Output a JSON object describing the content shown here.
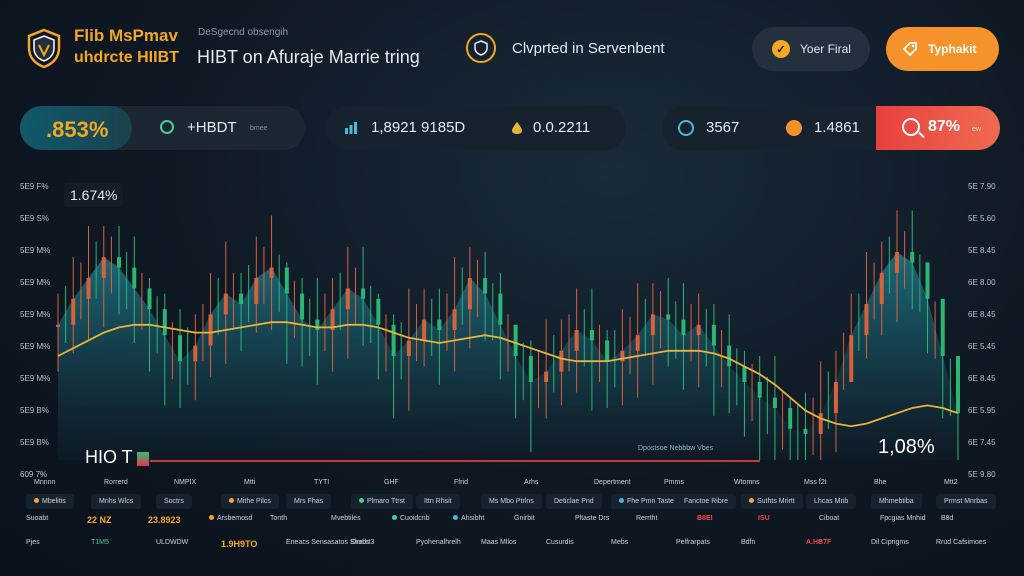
{
  "header": {
    "brand_title": "Flib MsPmav",
    "brand_subtitle": "uhdrcte HIIBT",
    "small_label": "DeSgecnd obsengih",
    "subtitle": "HIBT on Afuraje Marrie tring",
    "status_text": "Clvprted in Servenbent",
    "secondary_button": "Yoer Firal",
    "primary_button": "Typhakit"
  },
  "stats": {
    "percent": ".853%",
    "asset_label": "+HBDT",
    "asset_small": "bmee",
    "value1": "1,8921 9185D",
    "value2": "0.0.2211",
    "count": "3567",
    "amount": "1.4861",
    "red_value": "87%",
    "red_small": "ew"
  },
  "chart": {
    "badge_top": "1.674%",
    "badge_bottom": "1,08%",
    "asset_name": "HIO T",
    "caption": "Dpostsoe Nebbbw Vbes",
    "y_ticks_left": [
      "5E9 F%",
      "5E9 S%",
      "5E9 M%",
      "5E9 M%",
      "5E9 M%",
      "5E9 M%",
      "5E9 M%",
      "5E9 B%",
      "5E9 B%",
      "609 7%"
    ],
    "y_ticks_right": [
      "5E 7.90",
      "5E 5.60",
      "5E 8.45",
      "6E 8.00",
      "6E 8.45",
      "6E 5.45",
      "6E 8.45",
      "6E 5.95",
      "6E 7.45",
      "5E 9.80"
    ],
    "colors": {
      "area_top": "#1d6f7f",
      "area_bottom": "#0f1c27",
      "bull": "#d7623a",
      "bear": "#2bb673",
      "ma": "#e6b43a"
    }
  },
  "chart_data": {
    "type": "line",
    "title": "",
    "xlabel": "",
    "ylabel": "",
    "x": [
      1,
      2,
      3,
      4,
      5,
      6,
      7,
      8,
      9,
      10,
      11,
      12,
      13,
      14,
      15,
      16,
      17,
      18,
      19,
      20,
      21,
      22,
      23,
      24,
      25,
      26,
      27,
      28,
      29,
      30,
      31,
      32,
      33,
      34,
      35,
      36,
      37,
      38,
      39,
      40,
      41,
      42,
      43,
      44,
      45,
      46,
      47,
      48,
      49,
      50,
      51,
      52,
      53,
      54,
      55,
      56,
      57,
      58,
      59,
      60
    ],
    "series": [
      {
        "values": [
          0.52,
          0.62,
          0.7,
          0.78,
          0.74,
          0.66,
          0.58,
          0.48,
          0.38,
          0.44,
          0.56,
          0.64,
          0.6,
          0.7,
          0.74,
          0.64,
          0.54,
          0.5,
          0.58,
          0.66,
          0.62,
          0.52,
          0.4,
          0.46,
          0.54,
          0.5,
          0.58,
          0.7,
          0.64,
          0.52,
          0.4,
          0.3,
          0.34,
          0.42,
          0.5,
          0.46,
          0.38,
          0.42,
          0.48,
          0.56,
          0.54,
          0.48,
          0.52,
          0.44,
          0.36,
          0.3,
          0.24,
          0.2,
          0.12,
          0.1,
          0.18,
          0.3,
          0.48,
          0.6,
          0.72,
          0.8,
          0.76,
          0.62,
          0.4,
          0.18
        ]
      },
      {
        "values": [
          0.4,
          0.43,
          0.46,
          0.49,
          0.51,
          0.52,
          0.52,
          0.51,
          0.5,
          0.49,
          0.49,
          0.5,
          0.51,
          0.52,
          0.53,
          0.53,
          0.52,
          0.51,
          0.51,
          0.52,
          0.52,
          0.51,
          0.49,
          0.47,
          0.46,
          0.45,
          0.46,
          0.47,
          0.48,
          0.47,
          0.45,
          0.43,
          0.41,
          0.39,
          0.38,
          0.38,
          0.38,
          0.39,
          0.4,
          0.41,
          0.42,
          0.42,
          0.42,
          0.41,
          0.39,
          0.36,
          0.33,
          0.29,
          0.24,
          0.19,
          0.16,
          0.14,
          0.13,
          0.14,
          0.16,
          0.18,
          0.2,
          0.21,
          0.2,
          0.18
        ]
      }
    ]
  },
  "table": {
    "header": [
      "Mnnnn",
      "Rorrerd",
      "NMPIX",
      "Mtti",
      "TYTI",
      "GHF",
      "Ffrid",
      "Arhs",
      "Depertment",
      "Pmms",
      "Wtomns",
      "Mss f2t",
      "Bhe",
      "Mtt2"
    ],
    "row1": [
      "Mbelitis",
      "Mnhs Wlcs",
      "Soctrs",
      "Mithe Pilcs",
      "Mrs Fhas",
      "Plmaro Ttrst",
      "Ittn Rhsit",
      "Ms Mbo Ptrlns",
      "Deticlae Pnd",
      "Fhe Pmn Taste",
      "Fanctoe Ribre",
      "Suthts Mrirtt",
      "Lhcas Mnb",
      "Mhmebtiba",
      "Prmst Mnrbas"
    ],
    "row2": [
      "Suoabt",
      "22 NZ",
      "23.8923",
      "Arsbemosd",
      "Tonth",
      "Mvebtiles",
      "Cuoidcnb",
      "Ahsibht",
      "Gnirbit",
      "Pltaste Drs",
      "Rerrtht",
      "B8EI",
      "ISU",
      "Ciboat",
      "Fpcgias Mnhid",
      "B8d"
    ],
    "row3": [
      "Pjes",
      "T1M5",
      "ULDWDW",
      "1.9H9TO",
      "Eneacs Sensasatos Shabs",
      "Dnrdrt3",
      "Pyohenalhrelh",
      "Maas Mllos",
      "Cusurdis",
      "Mebs",
      "Pelfrarpats",
      "Bdfn",
      "A.HB7F",
      "Dil Ciprigms",
      "Rrud Cafsimoes"
    ]
  }
}
